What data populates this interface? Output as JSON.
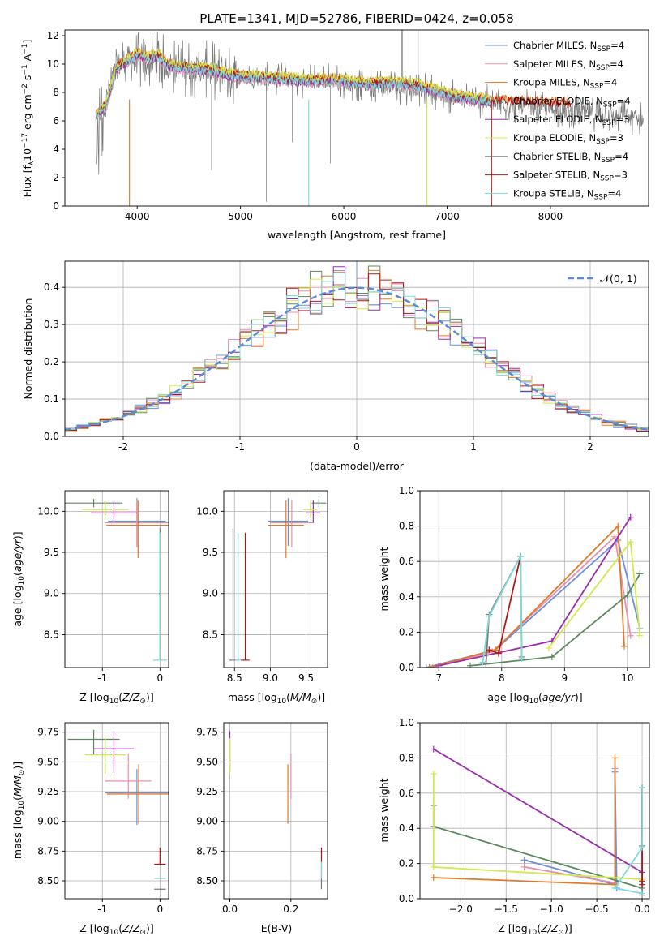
{
  "title": "PLATE=1341, MJD=52786, FIBERID=0424, z=0.058",
  "series_names": [
    "Chabrier MILES, N_SSP=4",
    "Salpeter MILES, N_SSP=4",
    "Kroupa MILES, N_SSP=4",
    "Chabrier ELODIE, N_SSP=4",
    "Salpeter ELODIE, N_SSP=3",
    "Kroupa ELODIE, N_SSP=3",
    "Chabrier STELIB, N_SSP=4",
    "Salpeter STELIB, N_SSP=3",
    "Kroupa STELIB, N_SSP=4"
  ],
  "colors": [
    "#6a8fd8",
    "#e88fb0",
    "#e07a28",
    "#5b8a5e",
    "#9a2eaa",
    "#d4e84a",
    "#7a7a7a",
    "#b01818",
    "#80d8d8"
  ],
  "labels": {
    "p1_xlabel": "wavelength [Angstrom, rest frame]",
    "p1_ylabel": "Flux [f_λ 10^-17 erg cm^-2 s^-1 A^-1]",
    "p2_xlabel": "(data-model)/error",
    "p2_ylabel": "Normed distribution",
    "p2_legend": "N(0,1)",
    "z_xlabel": "Z [log10(Z/Z⊙)]",
    "mass_xlabel": "mass [log10(M/M⊙)]",
    "age_ylabel": "age  [log10(age/yr)]",
    "age_xlabel": "age  [log10(age/yr)]",
    "mw_ylabel": "mass weight",
    "mass_ylabel": "mass [log10(M/M⊙)]",
    "ebv_xlabel": "E(B-V)"
  },
  "chart_data": [
    {
      "type": "line",
      "title": "PLATE=1341, MJD=52786, FIBERID=0424, z=0.058",
      "xlabel": "wavelength [Angstrom, rest frame]",
      "ylabel": "Flux [f_λ 10^-17 erg cm^-2 s^-1 A^-1]",
      "xlim": [
        3300,
        8950
      ],
      "ylim": [
        0,
        12.4
      ],
      "xticks": [
        4000,
        5000,
        6000,
        7000,
        8000
      ],
      "yticks": [
        0,
        2,
        4,
        6,
        8,
        10,
        12
      ],
      "data_spectrum": {
        "x": [
          3600,
          3700,
          3800,
          3900,
          4000,
          4100,
          4200,
          4300,
          4500,
          4700,
          4900,
          5100,
          5300,
          5500,
          5700,
          5900,
          6100,
          6300,
          6500,
          6700,
          6900,
          7100,
          7300,
          7500,
          7700,
          7900,
          8100,
          8300,
          8500,
          8700,
          8900
        ],
        "y": [
          6.0,
          7.5,
          9.8,
          10.4,
          10.2,
          10.0,
          10.3,
          9.9,
          9.7,
          9.6,
          9.2,
          9.0,
          9.0,
          8.9,
          8.8,
          8.9,
          8.6,
          8.5,
          8.4,
          8.3,
          8.0,
          7.6,
          7.4,
          7.2,
          7.0,
          6.9,
          6.7,
          6.6,
          6.4,
          6.3,
          6.1
        ]
      },
      "model_spectrum": {
        "x": [
          3600,
          3700,
          3800,
          3900,
          4000,
          4100,
          4200,
          4300,
          4500,
          4700,
          4900,
          5100,
          5300,
          5500,
          5700,
          5900,
          6100,
          6300,
          6500,
          6700,
          6900,
          7100,
          7300,
          7420
        ],
        "y": [
          6.3,
          7.0,
          9.6,
          10.1,
          10.6,
          10.3,
          10.5,
          9.8,
          9.6,
          9.5,
          9.1,
          9.0,
          8.9,
          8.8,
          8.7,
          8.8,
          8.6,
          8.5,
          8.6,
          8.4,
          8.0,
          7.6,
          7.4,
          7.3
        ]
      },
      "series": [
        {
          "name": "Chabrier MILES, N_SSP=4"
        },
        {
          "name": "Salpeter MILES, N_SSP=4"
        },
        {
          "name": "Kroupa MILES, N_SSP=4"
        },
        {
          "name": "Chabrier ELODIE, N_SSP=4"
        },
        {
          "name": "Salpeter ELODIE, N_SSP=3"
        },
        {
          "name": "Kroupa ELODIE, N_SSP=3"
        },
        {
          "name": "Chabrier STELIB, N_SSP=4"
        },
        {
          "name": "Salpeter STELIB, N_SSP=3"
        },
        {
          "name": "Kroupa STELIB, N_SSP=4"
        }
      ],
      "legend": "top-right"
    },
    {
      "type": "line",
      "xlabel": "(data-model)/error",
      "ylabel": "Normed distribution",
      "xlim": [
        -2.5,
        2.5
      ],
      "ylim": [
        0,
        0.47
      ],
      "xticks": [
        -2,
        -1,
        0,
        1,
        2
      ],
      "yticks": [
        0.0,
        0.1,
        0.2,
        0.3,
        0.4
      ],
      "bin_width": 0.1,
      "histogram_bins_from": -2.5,
      "reference": {
        "name": "N(0,1)",
        "style": "dashed"
      },
      "grid": true,
      "legend": "top-right"
    },
    {
      "type": "scatter",
      "xlabel": "Z [log10(Z/Z⊙)]",
      "ylabel": "age  [log10(age/yr)]",
      "xlim": [
        -1.65,
        0.15
      ],
      "ylim": [
        8.1,
        10.25
      ],
      "xticks": [
        -1,
        0
      ],
      "yticks": [
        8.5,
        9.0,
        9.5,
        10.0
      ],
      "points": [
        {
          "s": 0,
          "x": -0.4,
          "y": 9.88,
          "xerr": 0.5,
          "yerr": [
            0.3,
            0.28
          ]
        },
        {
          "s": 1,
          "x": -0.4,
          "y": 9.86,
          "xerr": 0.55,
          "yerr": [
            0.3,
            0.28
          ]
        },
        {
          "s": 2,
          "x": -0.38,
          "y": 9.83,
          "xerr": 0.55,
          "yerr": [
            0.4,
            0.3
          ]
        },
        {
          "s": 3,
          "x": -1.15,
          "y": 10.1,
          "xerr": 0.5,
          "yerr": [
            0.05,
            0.05
          ]
        },
        {
          "s": 4,
          "x": -0.8,
          "y": 9.98,
          "xerr": 0.4,
          "yerr": [
            0.12,
            0.15
          ]
        },
        {
          "s": 5,
          "x": -0.95,
          "y": 10.02,
          "xerr": 0.4,
          "yerr": [
            0.1,
            0.1
          ]
        },
        {
          "s": 6,
          "x": 0.0,
          "y": 9.0,
          "xerr": 0.02,
          "yerr": [
            0.8,
            0.8
          ]
        },
        {
          "s": 8,
          "x": 0.0,
          "y": 8.19,
          "xerr": 0.12,
          "yerr": [
            0.0,
            1.55
          ]
        }
      ]
    },
    {
      "type": "scatter",
      "xlabel": "mass [log10(M/M⊙)]",
      "xlim": [
        8.35,
        9.8
      ],
      "ylim": [
        8.1,
        10.25
      ],
      "xticks": [
        8.5,
        9.0,
        9.5
      ],
      "yticks": [
        8.5,
        9.0,
        9.5,
        10.0
      ],
      "points": [
        {
          "s": 0,
          "x": 9.25,
          "y": 9.88,
          "xerr": 0.28,
          "yerr": [
            0.3,
            0.28
          ]
        },
        {
          "s": 1,
          "x": 9.3,
          "y": 9.86,
          "xerr": 0.3,
          "yerr": [
            0.3,
            0.28
          ]
        },
        {
          "s": 2,
          "x": 9.22,
          "y": 9.83,
          "xerr": 0.25,
          "yerr": [
            0.4,
            0.3
          ]
        },
        {
          "s": 3,
          "x": 9.68,
          "y": 10.1,
          "xerr": 0.1,
          "yerr": [
            0.05,
            0.05
          ]
        },
        {
          "s": 4,
          "x": 9.6,
          "y": 9.98,
          "xerr": 0.1,
          "yerr": [
            0.12,
            0.15
          ]
        },
        {
          "s": 5,
          "x": 9.56,
          "y": 10.02,
          "xerr": 0.1,
          "yerr": [
            0.1,
            0.1
          ]
        },
        {
          "s": 6,
          "x": 8.48,
          "y": 8.19,
          "xerr": 0.05,
          "yerr": [
            0.0,
            1.6
          ]
        },
        {
          "s": 7,
          "x": 8.65,
          "y": 8.19,
          "xerr": 0.06,
          "yerr": [
            0.0,
            1.55
          ]
        },
        {
          "s": 8,
          "x": 8.55,
          "y": 8.19,
          "xerr": 0.04,
          "yerr": [
            0.0,
            1.55
          ]
        }
      ]
    },
    {
      "type": "line",
      "xlabel": "age  [log10(age/yr)]",
      "ylabel": "mass weight",
      "xlim": [
        6.7,
        10.35
      ],
      "ylim": [
        0,
        1.0
      ],
      "xticks": [
        7,
        8,
        9,
        10
      ],
      "yticks": [
        0.0,
        0.2,
        0.4,
        0.6,
        0.8,
        1.0
      ],
      "grid": true,
      "series": [
        {
          "s": 0,
          "x": [
            6.8,
            7.9,
            9.85,
            10.2
          ],
          "y": [
            0.0,
            0.1,
            0.72,
            0.22
          ]
        },
        {
          "s": 1,
          "x": [
            6.9,
            7.85,
            9.8,
            10.05
          ],
          "y": [
            0.0,
            0.09,
            0.74,
            0.18
          ]
        },
        {
          "s": 2,
          "x": [
            6.85,
            7.9,
            9.85,
            9.95
          ],
          "y": [
            0.0,
            0.1,
            0.8,
            0.12
          ]
        },
        {
          "s": 3,
          "x": [
            7.5,
            8.8,
            10.0,
            10.2
          ],
          "y": [
            0.01,
            0.06,
            0.41,
            0.53
          ]
        },
        {
          "s": 4,
          "x": [
            7.0,
            8.8,
            10.05
          ],
          "y": [
            0.01,
            0.15,
            0.85
          ]
        },
        {
          "s": 5,
          "x": [
            8.75,
            10.05,
            10.2
          ],
          "y": [
            0.11,
            0.71,
            0.18
          ]
        },
        {
          "s": 6,
          "x": [
            7.75,
            7.8,
            8.3,
            8.32
          ],
          "y": [
            0.02,
            0.3,
            0.63,
            0.06
          ]
        },
        {
          "s": 7,
          "x": [
            7.8,
            7.95,
            8.3
          ],
          "y": [
            0.1,
            0.08,
            0.63
          ]
        },
        {
          "s": 8,
          "x": [
            7.7,
            7.8,
            8.3,
            8.32
          ],
          "y": [
            0.03,
            0.29,
            0.63,
            0.05
          ]
        }
      ]
    },
    {
      "type": "scatter",
      "xlabel": "Z [log10(Z/Z⊙)]",
      "ylabel": "mass [log10(M/M⊙)]",
      "xlim": [
        -1.65,
        0.15
      ],
      "ylim": [
        8.35,
        9.83
      ],
      "xticks": [
        -1,
        0
      ],
      "yticks": [
        8.5,
        8.75,
        9.0,
        9.25,
        9.5,
        9.75
      ],
      "points": [
        {
          "s": 0,
          "x": -0.4,
          "y": 9.24,
          "xerr": 0.55,
          "yerr": [
            0.27,
            0.2
          ]
        },
        {
          "s": 1,
          "x": -0.55,
          "y": 9.34,
          "xerr": 0.4,
          "yerr": [
            0.15,
            0.23
          ]
        },
        {
          "s": 2,
          "x": -0.37,
          "y": 9.23,
          "xerr": 0.55,
          "yerr": [
            0.25,
            0.25
          ]
        },
        {
          "s": 3,
          "x": -1.15,
          "y": 9.69,
          "xerr": 0.45,
          "yerr": [
            0.13,
            0.08
          ]
        },
        {
          "s": 4,
          "x": -0.8,
          "y": 9.61,
          "xerr": 0.35,
          "yerr": [
            0.2,
            0.15
          ]
        },
        {
          "s": 5,
          "x": -0.95,
          "y": 9.56,
          "xerr": 0.35,
          "yerr": [
            0.16,
            0.14
          ]
        },
        {
          "s": 6,
          "x": 0.0,
          "y": 8.43,
          "xerr": 0.1,
          "yerr": [
            0.0,
            0.0
          ]
        },
        {
          "s": 7,
          "x": 0.0,
          "y": 8.64,
          "xerr": 0.1,
          "yerr": [
            0.0,
            0.14
          ]
        },
        {
          "s": 8,
          "x": 0.0,
          "y": 8.52,
          "xerr": 0.1,
          "yerr": [
            0.0,
            0.0
          ]
        }
      ]
    },
    {
      "type": "scatter",
      "xlabel": "E(B-V)",
      "xlim": [
        -0.02,
        0.32
      ],
      "ylim": [
        8.35,
        9.83
      ],
      "xticks": [
        0.0,
        0.2
      ],
      "yticks": [
        8.5,
        8.75,
        9.0,
        9.25,
        9.5,
        9.75
      ],
      "points": [
        {
          "s": 1,
          "x": 0.2,
          "y": 9.34,
          "xerr": 0.0,
          "yerr": [
            0.15,
            0.23
          ]
        },
        {
          "s": 2,
          "x": 0.19,
          "y": 9.23,
          "xerr": 0.0,
          "yerr": [
            0.25,
            0.25
          ]
        },
        {
          "s": 4,
          "x": 0.0,
          "y": 9.61,
          "xerr": 0.0,
          "yerr": [
            0.2,
            0.15
          ]
        },
        {
          "s": 5,
          "x": 0.0,
          "y": 9.56,
          "xerr": 0.0,
          "yerr": [
            0.16,
            0.14
          ]
        },
        {
          "s": 6,
          "x": 0.3,
          "y": 8.43,
          "xerr": 0.0,
          "yerr": [
            0.0,
            0.2
          ]
        },
        {
          "s": 7,
          "x": 0.3,
          "y": 8.64,
          "xerr": 0.0,
          "yerr": [
            0.0,
            0.14
          ]
        },
        {
          "s": 8,
          "x": 0.3,
          "y": 8.52,
          "xerr": 0.0,
          "yerr": [
            0.0,
            0.14
          ]
        }
      ]
    },
    {
      "type": "line",
      "xlabel": "Z [log10(Z/Z⊙)]",
      "ylabel": "mass weight",
      "xlim": [
        -2.45,
        0.08
      ],
      "ylim": [
        0,
        1.0
      ],
      "xticks": [
        -2.0,
        -1.5,
        -1.0,
        -0.5,
        0.0
      ],
      "yticks": [
        0.0,
        0.2,
        0.4,
        0.6,
        0.8,
        1.0
      ],
      "grid": true,
      "series": [
        {
          "s": 0,
          "x": [
            -1.3,
            -0.3,
            -0.3,
            -0.28
          ],
          "y": [
            0.22,
            0.08,
            0.72,
            0.06
          ]
        },
        {
          "s": 1,
          "x": [
            -1.3,
            -0.3,
            -0.3
          ],
          "y": [
            0.18,
            0.09,
            0.74
          ]
        },
        {
          "s": 2,
          "x": [
            -2.3,
            -0.3,
            -0.3
          ],
          "y": [
            0.12,
            0.08,
            0.8
          ]
        },
        {
          "s": 3,
          "x": [
            -2.3,
            -2.3,
            -2.3,
            0.0
          ],
          "y": [
            0.53,
            0.41,
            0.41,
            0.06
          ]
        },
        {
          "s": 4,
          "x": [
            -2.3,
            0.0
          ],
          "y": [
            0.85,
            0.15
          ]
        },
        {
          "s": 5,
          "x": [
            -2.3,
            -2.3,
            0.0
          ],
          "y": [
            0.71,
            0.18,
            0.11
          ]
        },
        {
          "s": 6,
          "x": [
            0.0,
            0.0,
            0.0
          ],
          "y": [
            0.3,
            0.63,
            0.02
          ]
        },
        {
          "s": 7,
          "x": [
            0.0,
            0.0,
            0.0
          ],
          "y": [
            0.1,
            0.08,
            0.63
          ]
        },
        {
          "s": 8,
          "x": [
            0.0,
            0.0,
            -0.3,
            0.0
          ],
          "y": [
            0.63,
            0.29,
            0.06,
            0.03
          ]
        }
      ]
    }
  ]
}
